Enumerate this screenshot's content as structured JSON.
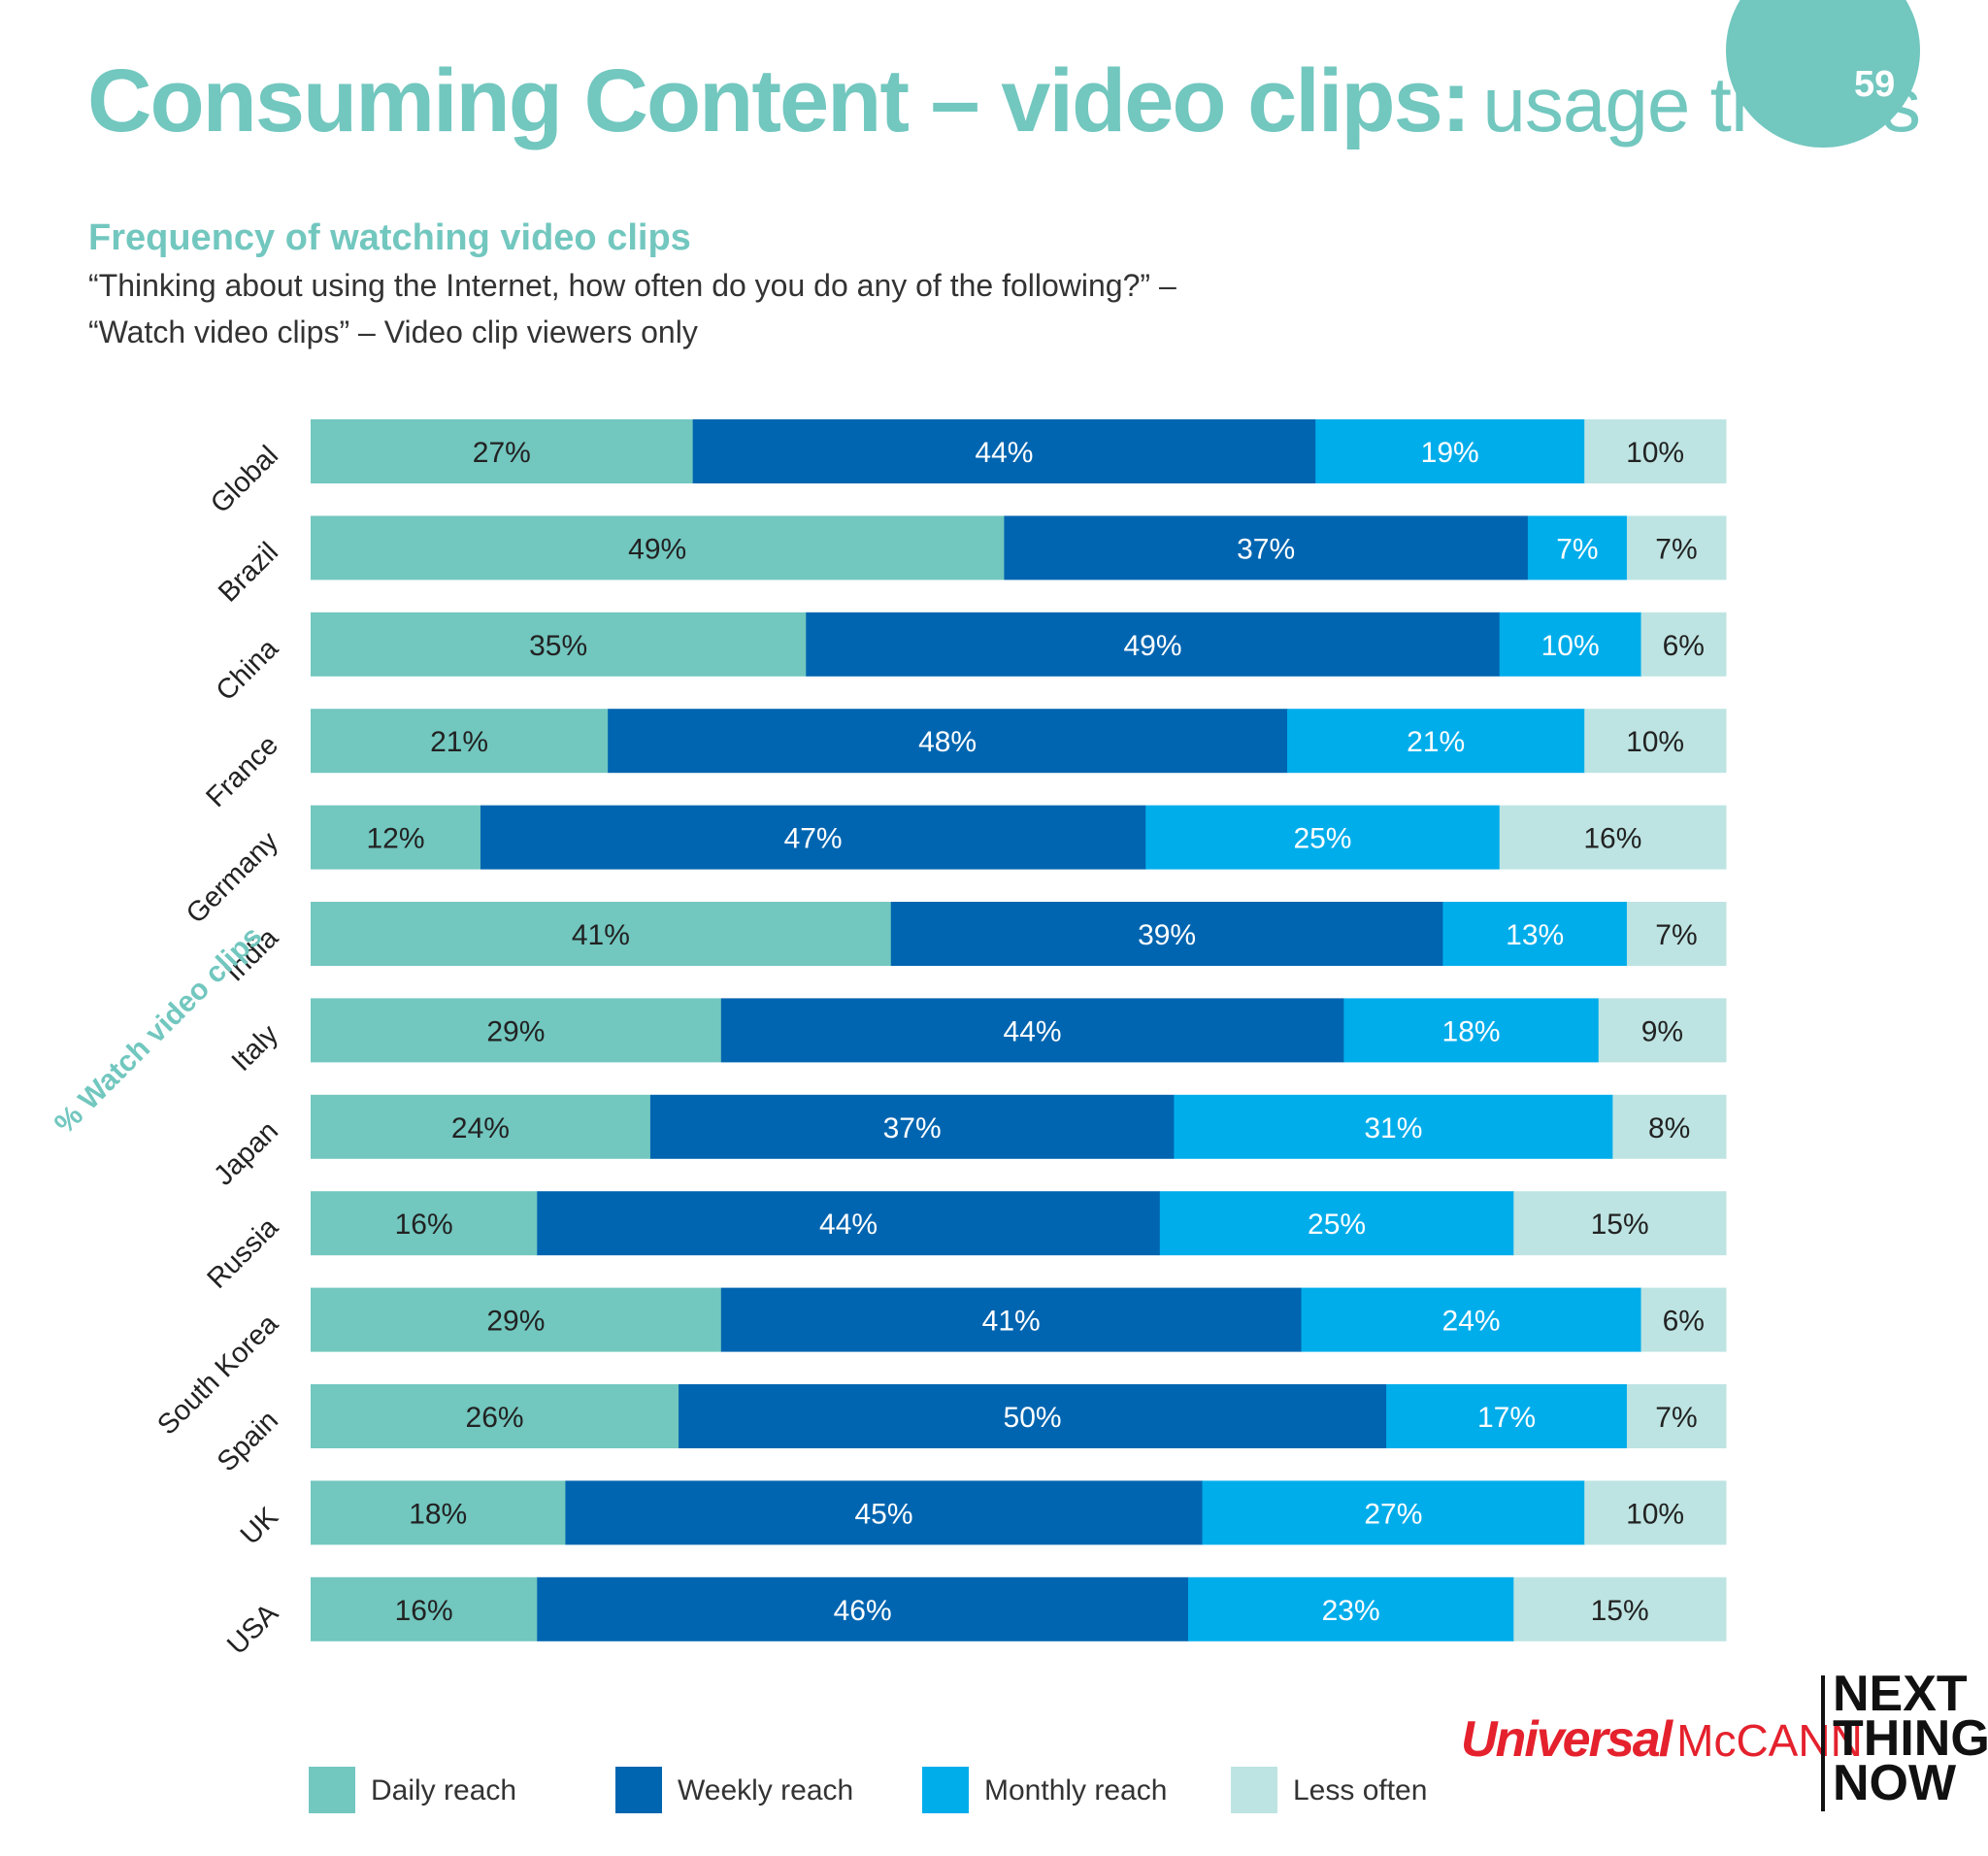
{
  "header": {
    "title_main": "Consuming Content – video clips:",
    "title_sub": "usage trends",
    "page_number": "59"
  },
  "chart_heading": "Frequency of watching video clips",
  "question_line1": "“Thinking about using the Internet, how often do you do any of the following?” –",
  "question_line2": "“Watch video clips” – Video clip viewers only",
  "chart_data": {
    "type": "bar",
    "orientation": "horizontal",
    "stacked": true,
    "ylabel": "% Watch video clips",
    "categories": [
      "Global",
      "Brazil",
      "China",
      "France",
      "Germany",
      "India",
      "Italy",
      "Japan",
      "Russia",
      "South Korea",
      "Spain",
      "UK",
      "USA"
    ],
    "series": [
      {
        "name": "Daily reach",
        "color": "#72c7bf",
        "values": [
          27,
          49,
          35,
          21,
          12,
          41,
          29,
          24,
          16,
          29,
          26,
          18,
          16
        ]
      },
      {
        "name": "Weekly reach",
        "color": "#0065b0",
        "values": [
          44,
          37,
          49,
          48,
          47,
          39,
          44,
          37,
          44,
          41,
          50,
          45,
          46
        ]
      },
      {
        "name": "Monthly reach",
        "color": "#00adeb",
        "values": [
          19,
          7,
          10,
          21,
          25,
          13,
          18,
          31,
          25,
          24,
          17,
          27,
          23
        ]
      },
      {
        "name": "Less often",
        "color": "#bde4e2",
        "values": [
          10,
          7,
          6,
          10,
          16,
          7,
          9,
          8,
          15,
          6,
          7,
          10,
          15
        ]
      }
    ],
    "value_suffix": "%",
    "xlim": [
      0,
      100
    ]
  },
  "legend": [
    {
      "label": "Daily reach",
      "color": "#72c7bf"
    },
    {
      "label": "Weekly reach",
      "color": "#0065b0"
    },
    {
      "label": "Monthly reach",
      "color": "#00adeb"
    },
    {
      "label": "Less often",
      "color": "#bde4e2"
    }
  ],
  "logo": {
    "universal": "Universal",
    "mccann": "McCANN",
    "next_line1": "NEXT",
    "next_line2": "THING",
    "next_line3": "NOW"
  }
}
